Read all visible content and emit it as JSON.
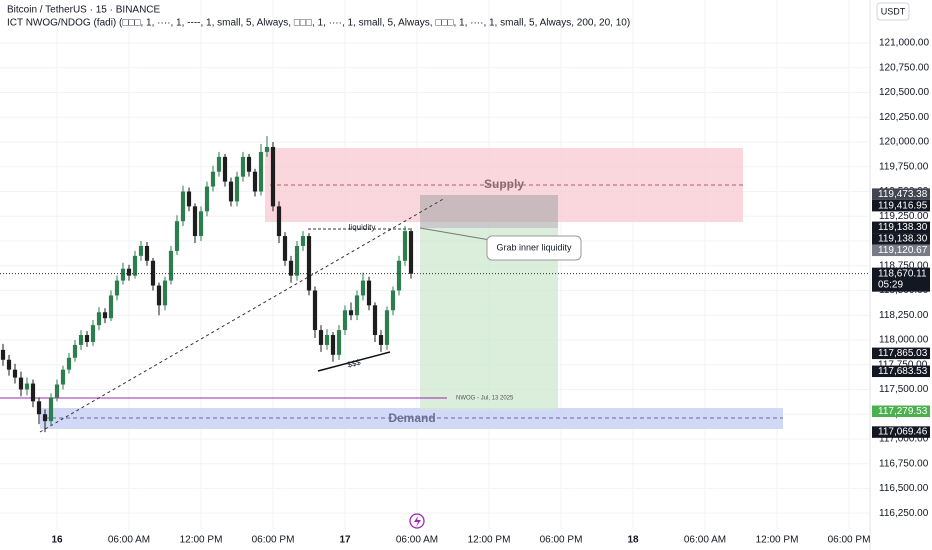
{
  "chart_data": {
    "type": "candlestick",
    "title": "Bitcoin / TetherUS · 15 · BINANCE",
    "subtitle": "ICT NWOG/NDOG (fadi) (□□□, 1, ····, 1, ----, 1, small, 5, Always, □□□, 1, ····, 1, small, 5, Always, □□□, 1, ····, 1, small, 5, Always, 200, 20, 10)",
    "currency": "USDT",
    "up_color": "#2e7d4f",
    "down_color": "#1e1e1e",
    "x": [
      -4.5,
      -4,
      -3.5,
      -3,
      -2.5,
      -2,
      -1.5,
      -1,
      -0.5,
      0,
      0.5,
      1,
      1.5,
      2,
      2.5,
      3,
      3.5,
      4,
      4.5,
      5,
      5.5,
      6,
      6.5,
      7,
      7.5,
      8,
      8.5,
      9,
      9.5,
      10,
      10.5,
      11,
      11.5,
      12,
      12.5,
      13,
      13.5,
      14,
      14.5,
      15,
      15.5,
      16,
      16.5,
      17,
      17.5,
      18,
      18.5,
      19,
      19.5,
      20,
      20.5,
      21,
      21.5,
      22,
      22.5,
      23,
      23.5,
      24,
      24.5,
      25,
      25.5,
      26,
      26.5,
      27,
      27.5,
      28,
      28.5,
      29,
      29.5
    ],
    "open": [
      117900,
      117800,
      117700,
      117620,
      117500,
      117560,
      117380,
      117250,
      117180,
      117420,
      117550,
      117700,
      117820,
      117950,
      118050,
      117980,
      118150,
      118280,
      118220,
      118450,
      118600,
      118720,
      118650,
      118850,
      118950,
      118800,
      118550,
      118350,
      118600,
      118900,
      119200,
      119500,
      119350,
      119050,
      119300,
      119550,
      119700,
      119850,
      119600,
      119400,
      119650,
      119850,
      119700,
      119500,
      119900,
      119950,
      119350,
      119050,
      118800,
      118650,
      118950,
      119050,
      118500,
      118100,
      117950,
      118050,
      117850,
      118100,
      118300,
      118250,
      118450,
      118600,
      118350,
      118050,
      117950,
      118300,
      118500,
      118800,
      119100
    ],
    "high": [
      117960,
      117850,
      117760,
      117680,
      117620,
      117600,
      117420,
      117300,
      117460,
      117600,
      117740,
      117870,
      118000,
      118100,
      118090,
      118200,
      118330,
      118320,
      118500,
      118650,
      118780,
      118760,
      118900,
      119000,
      118990,
      118830,
      118580,
      118640,
      118950,
      119260,
      119560,
      119540,
      119380,
      119350,
      119600,
      119760,
      119900,
      119880,
      119640,
      119700,
      119900,
      119880,
      119730,
      119980,
      120060,
      120000,
      119400,
      119090,
      118850,
      119000,
      119100,
      119080,
      118540,
      118150,
      118110,
      118080,
      118150,
      118350,
      118380,
      118500,
      118680,
      118640,
      118380,
      118100,
      118340,
      118540,
      118850,
      119150,
      119130
    ],
    "low": [
      117740,
      117640,
      117560,
      117430,
      117440,
      117320,
      117150,
      117069,
      117130,
      117380,
      117500,
      117660,
      117780,
      117900,
      117930,
      117940,
      118100,
      118170,
      118190,
      118400,
      118560,
      118600,
      118620,
      118800,
      118750,
      118500,
      118250,
      118300,
      118560,
      118860,
      119150,
      119300,
      118980,
      119000,
      119250,
      119500,
      119650,
      119550,
      119350,
      119350,
      119600,
      119650,
      119450,
      119460,
      119850,
      119300,
      118980,
      118750,
      118580,
      118600,
      118900,
      118450,
      118020,
      117880,
      117900,
      117780,
      117800,
      118050,
      118200,
      118200,
      118400,
      118300,
      117980,
      117880,
      117900,
      118250,
      118450,
      118750,
      118620
    ],
    "close": [
      117800,
      117700,
      117620,
      117500,
      117560,
      117380,
      117250,
      117180,
      117420,
      117550,
      117700,
      117820,
      117950,
      118050,
      117980,
      118150,
      118280,
      118220,
      118450,
      118600,
      118720,
      118650,
      118850,
      118950,
      118800,
      118550,
      118350,
      118600,
      118900,
      119200,
      119500,
      119350,
      119050,
      119300,
      119550,
      119700,
      119850,
      119600,
      119400,
      119650,
      119850,
      119700,
      119500,
      119900,
      119950,
      119350,
      119050,
      118800,
      118650,
      118950,
      119050,
      118500,
      118100,
      117950,
      118050,
      117850,
      118100,
      118300,
      118250,
      118450,
      118600,
      118350,
      118050,
      117950,
      118300,
      118500,
      118800,
      119100,
      118670
    ],
    "xlim": [
      -4.75,
      67.75
    ],
    "xticks": [
      {
        "value": 0,
        "label": "16"
      },
      {
        "value": 6,
        "label": "06:00 AM"
      },
      {
        "value": 12,
        "label": "12:00 PM"
      },
      {
        "value": 18,
        "label": "06:00 PM"
      },
      {
        "value": 24,
        "label": "17"
      },
      {
        "value": 30,
        "label": "06:00 AM"
      },
      {
        "value": 36,
        "label": "12:00 PM"
      },
      {
        "value": 42,
        "label": "06:00 PM"
      },
      {
        "value": 48,
        "label": "18"
      },
      {
        "value": 54,
        "label": "06:00 AM"
      },
      {
        "value": 60,
        "label": "12:00 PM"
      },
      {
        "value": 66,
        "label": "06:00 PM"
      }
    ],
    "ylim": [
      116080,
      121435
    ],
    "yticks": [
      {
        "value": 116250,
        "label": "116,250.00"
      },
      {
        "value": 116500,
        "label": "116,500.00"
      },
      {
        "value": 116750,
        "label": "116,750.00"
      },
      {
        "value": 117000,
        "label": "117,000.00"
      },
      {
        "value": 117250,
        "label": "117,250.00"
      },
      {
        "value": 117500,
        "label": "117,500.00"
      },
      {
        "value": 117750,
        "label": "117,750.00"
      },
      {
        "value": 118000,
        "label": "118,000.00"
      },
      {
        "value": 118250,
        "label": "118,250.00"
      },
      {
        "value": 118500,
        "label": "118,500.00"
      },
      {
        "value": 118750,
        "label": "118,750.00"
      },
      {
        "value": 119000,
        "label": "119,000.00"
      },
      {
        "value": 119250,
        "label": "119,250.00"
      },
      {
        "value": 119500,
        "label": "119,500.00"
      },
      {
        "value": 119750,
        "label": "119,750.00"
      },
      {
        "value": 120000,
        "label": "120,000.00"
      },
      {
        "value": 120250,
        "label": "120,250.00"
      },
      {
        "value": 120500,
        "label": "120,500.00"
      },
      {
        "value": 120750,
        "label": "120,750.00"
      },
      {
        "value": 121000,
        "label": "121,000.00"
      }
    ],
    "grid": true,
    "price_labels": [
      {
        "value": 117750,
        "label": "117,750.00",
        "color": "#ffffff"
      },
      {
        "value": 119473.38,
        "label": "119,473.38",
        "color": "#434651"
      },
      {
        "value": 119416.95,
        "label": "119,416.95",
        "color": "#131722"
      },
      {
        "value": 119138.3,
        "label": "119,138.30",
        "color": "#131722"
      },
      {
        "value": 119138.3,
        "label": "119,138.30",
        "color": "#131722"
      },
      {
        "value": 119120.67,
        "label": "119,120.67",
        "color": "#787b86"
      },
      {
        "value": 117865.03,
        "label": "117,865.03",
        "color": "#131722"
      },
      {
        "value": 117683.53,
        "label": "117,683.53",
        "color": "#131722"
      },
      {
        "value": 117279.53,
        "label": "117,279.53",
        "color": "#4caf50"
      },
      {
        "value": 117069.46,
        "label": "117,069.46",
        "color": "#131722"
      }
    ],
    "last_price": {
      "value": 118670.11,
      "label": "118,670.11"
    },
    "countdown": "05:29",
    "annotations": {
      "supply": "Supply",
      "demand": "Demand",
      "liquidity": "liquidity",
      "grab": "Grab inner liquidity",
      "sss": "$$$",
      "nwog": "NWOG - Jul, 13 2025"
    }
  }
}
